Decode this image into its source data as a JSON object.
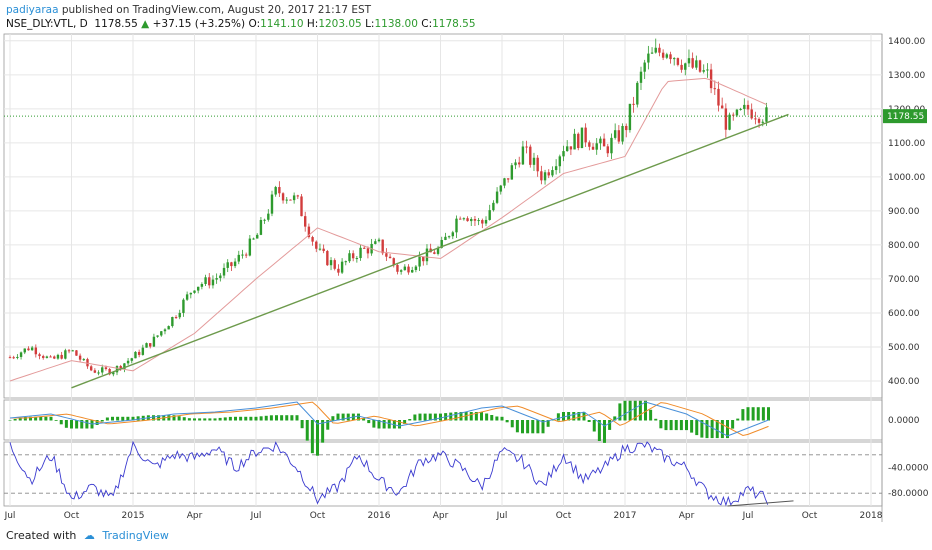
{
  "header": {
    "author": "padiyaraa",
    "published": "published on TradingView.com, August 20, 2017 21:17 EST",
    "symbol": "NSE_DLY:VTL, D",
    "last": "1178.55",
    "change": "+37.15 (+3.25%)",
    "o_label": "O:",
    "o_val": "1141.10",
    "h_label": "H:",
    "h_val": "1203.05",
    "l_label": "L:",
    "l_val": "1138.00",
    "c_label": "C:",
    "c_val": "1178.55"
  },
  "footer": {
    "created_with": "Created with",
    "brand": "TradingView"
  },
  "colors": {
    "up": "#2e9a2e",
    "down": "#d23c3c",
    "ma": "#e39a9a",
    "trend": "#6d9a4c",
    "macd_blue": "#4a90d9",
    "macd_orange": "#f08c2a",
    "hist": "#22a022",
    "rsi": "#3a3acf",
    "price_tag": "#2e9a2e",
    "grid": "#e6e6e6"
  },
  "chart_data": {
    "type": "candlestick",
    "x_ticks": [
      "Jul",
      "Oct",
      "2015",
      "Apr",
      "Jul",
      "Oct",
      "2016",
      "Apr",
      "Jul",
      "Oct",
      "2017",
      "Apr",
      "Jul",
      "Oct",
      "2018"
    ],
    "price_ticks": [
      "1400.00",
      "1300.00",
      "1200.00",
      "1100.00",
      "1000.00",
      "900.00",
      "800.00",
      "700.00",
      "600.00",
      "500.00",
      "400.00"
    ],
    "price_range": [
      350,
      1420
    ],
    "last_price_tag": "1178.55",
    "last_price_line": 1178.55,
    "price_path": [
      [
        "2014-07",
        470
      ],
      [
        "2014-08",
        500
      ],
      [
        "2014-09",
        460
      ],
      [
        "2014-10",
        490
      ],
      [
        "2014-11",
        430
      ],
      [
        "2014-12",
        430
      ],
      [
        "2015-01",
        470
      ],
      [
        "2015-02",
        520
      ],
      [
        "2015-03",
        590
      ],
      [
        "2015-04",
        680
      ],
      [
        "2015-05",
        700
      ],
      [
        "2015-06",
        750
      ],
      [
        "2015-07",
        820
      ],
      [
        "2015-08",
        960
      ],
      [
        "2015-09",
        930
      ],
      [
        "2015-10",
        780
      ],
      [
        "2015-11",
        730
      ],
      [
        "2015-12",
        780
      ],
      [
        "2016-01",
        800
      ],
      [
        "2016-02",
        720
      ],
      [
        "2016-03",
        760
      ],
      [
        "2016-04",
        790
      ],
      [
        "2016-05",
        900
      ],
      [
        "2016-06",
        860
      ],
      [
        "2016-07",
        970
      ],
      [
        "2016-08",
        1080
      ],
      [
        "2016-09",
        1000
      ],
      [
        "2016-10",
        1090
      ],
      [
        "2016-11",
        1120
      ],
      [
        "2016-12",
        1080
      ],
      [
        "2017-01",
        1140
      ],
      [
        "2017-02",
        1340
      ],
      [
        "2017-03",
        1380
      ],
      [
        "2017-04",
        1330
      ],
      [
        "2017-05",
        1300
      ],
      [
        "2017-06",
        1150
      ],
      [
        "2017-07",
        1200
      ],
      [
        "2017-08",
        1178.55
      ]
    ],
    "moving_average": [
      [
        "2014-07",
        400
      ],
      [
        "2014-10",
        460
      ],
      [
        "2015-01",
        430
      ],
      [
        "2015-04",
        540
      ],
      [
        "2015-07",
        700
      ],
      [
        "2015-10",
        850
      ],
      [
        "2016-01",
        780
      ],
      [
        "2016-04",
        760
      ],
      [
        "2016-07",
        880
      ],
      [
        "2016-10",
        1010
      ],
      [
        "2017-01",
        1060
      ],
      [
        "2017-03",
        1280
      ],
      [
        "2017-05",
        1290
      ],
      [
        "2017-08",
        1210
      ]
    ],
    "trendline": [
      [
        "2014-10",
        380
      ],
      [
        "2017-08",
        1160
      ]
    ],
    "macd_ticks": [
      "0.0000"
    ],
    "macd_range": [
      -1,
      1
    ],
    "macd": [
      [
        "2014-07",
        0.1
      ],
      [
        "2014-09",
        0.3
      ],
      [
        "2014-11",
        -0.2
      ],
      [
        "2015-01",
        0.0
      ],
      [
        "2015-03",
        0.3
      ],
      [
        "2015-05",
        0.4
      ],
      [
        "2015-07",
        0.6
      ],
      [
        "2015-09",
        0.9
      ],
      [
        "2015-10",
        -0.2
      ],
      [
        "2015-12",
        0.2
      ],
      [
        "2016-02",
        -0.3
      ],
      [
        "2016-04",
        0.1
      ],
      [
        "2016-06",
        0.6
      ],
      [
        "2016-07",
        0.7
      ],
      [
        "2016-09",
        -0.1
      ],
      [
        "2016-11",
        0.4
      ],
      [
        "2016-12",
        -0.3
      ],
      [
        "2017-02",
        0.9
      ],
      [
        "2017-04",
        0.3
      ],
      [
        "2017-06",
        -0.8
      ],
      [
        "2017-08",
        0.0
      ]
    ],
    "rsi_ticks": [
      "-40.0000",
      "-80.0000"
    ],
    "rsi_range": [
      -100,
      0
    ],
    "rsi_levels": [
      -20,
      -80
    ],
    "rsi": [
      [
        "2014-07",
        -5
      ],
      [
        "2014-08",
        -60
      ],
      [
        "2014-09",
        -20
      ],
      [
        "2014-10",
        -90
      ],
      [
        "2014-11",
        -70
      ],
      [
        "2014-12",
        -90
      ],
      [
        "2015-01",
        -5
      ],
      [
        "2015-02",
        -40
      ],
      [
        "2015-03",
        -20
      ],
      [
        "2015-04",
        -25
      ],
      [
        "2015-05",
        -10
      ],
      [
        "2015-06",
        -40
      ],
      [
        "2015-07",
        -15
      ],
      [
        "2015-08",
        -5
      ],
      [
        "2015-09",
        -40
      ],
      [
        "2015-10",
        -90
      ],
      [
        "2015-11",
        -70
      ],
      [
        "2015-12",
        -20
      ],
      [
        "2016-01",
        -60
      ],
      [
        "2016-02",
        -80
      ],
      [
        "2016-03",
        -30
      ],
      [
        "2016-04",
        -20
      ],
      [
        "2016-05",
        -40
      ],
      [
        "2016-06",
        -70
      ],
      [
        "2016-07",
        -15
      ],
      [
        "2016-08",
        -30
      ],
      [
        "2016-09",
        -70
      ],
      [
        "2016-10",
        -20
      ],
      [
        "2016-11",
        -60
      ],
      [
        "2016-12",
        -40
      ],
      [
        "2017-01",
        -10
      ],
      [
        "2017-02",
        -5
      ],
      [
        "2017-03",
        -25
      ],
      [
        "2017-04",
        -40
      ],
      [
        "2017-05",
        -80
      ],
      [
        "2017-06",
        -95
      ],
      [
        "2017-07",
        -75
      ],
      [
        "2017-08",
        -90
      ]
    ],
    "rsi_trendline": [
      [
        "2017-06",
        -100
      ],
      [
        "2017-08",
        -92
      ]
    ]
  }
}
